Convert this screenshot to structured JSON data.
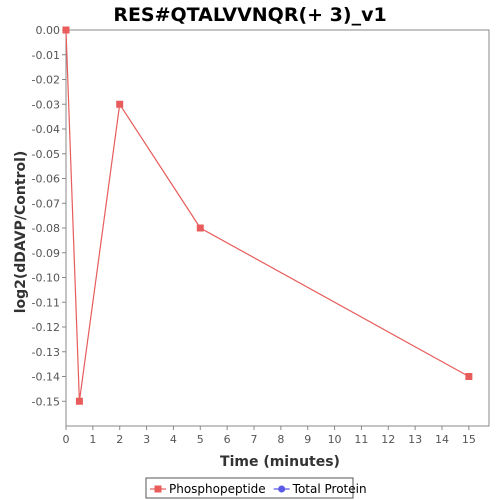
{
  "chart_data": {
    "type": "line",
    "title": "RES#QTALVVNQR(+ 3)_v1",
    "xlabel": "Time (minutes)",
    "ylabel": "log2(dDAVP/Control)",
    "xlim": [
      0,
      15.75
    ],
    "ylim": [
      -0.16,
      0
    ],
    "x_ticks": [
      "0",
      "1",
      "2",
      "3",
      "4",
      "5",
      "6",
      "7",
      "8",
      "9",
      "10",
      "11",
      "12",
      "13",
      "14",
      "15"
    ],
    "y_ticks": [
      "0.00",
      "-0.01",
      "-0.02",
      "-0.03",
      "-0.04",
      "-0.05",
      "-0.06",
      "-0.07",
      "-0.08",
      "-0.09",
      "-0.10",
      "-0.11",
      "-0.12",
      "-0.13",
      "-0.14",
      "-0.15"
    ],
    "grid": false,
    "legend_position": "bottom",
    "series": [
      {
        "name": "Phosphopeptide",
        "color": "#e85c5c",
        "marker": "square",
        "x": [
          0,
          0.5,
          2,
          5,
          15
        ],
        "y": [
          0.0,
          -0.15,
          -0.03,
          -0.08,
          -0.14
        ]
      }
    ],
    "legend": [
      {
        "label": "Phosphopeptide",
        "color": "#e85c5c",
        "marker": "square"
      },
      {
        "label": "Total Protein",
        "color": "#5a5ae6",
        "marker": "circle"
      }
    ]
  }
}
